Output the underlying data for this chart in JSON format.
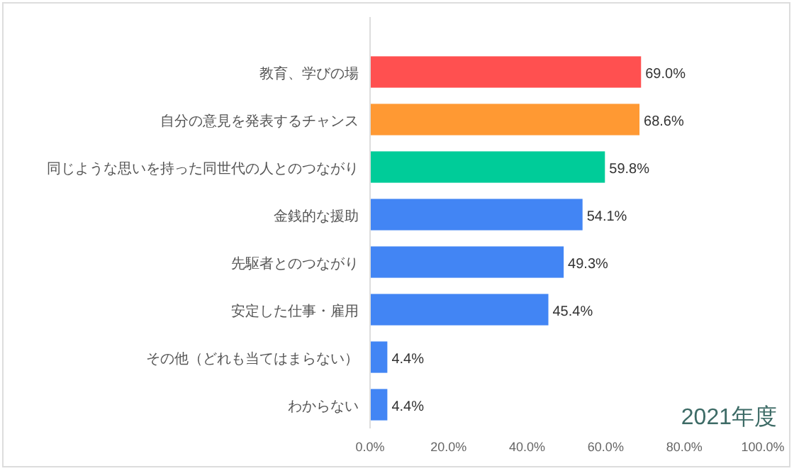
{
  "chart_data": {
    "type": "bar",
    "orientation": "horizontal",
    "categories": [
      "教育、学びの場",
      "自分の意見を発表するチャンス",
      "同じような思いを持った同世代の人とのつながり",
      "金銭的な援助",
      "先駆者とのつながり",
      "安定した仕事・雇用",
      "その他（どれも当てはまらない）",
      "わからない"
    ],
    "values": [
      69.0,
      68.6,
      59.8,
      54.1,
      49.3,
      45.4,
      4.4,
      4.4
    ],
    "colors": [
      "#ff5050",
      "#ff9933",
      "#00cc99",
      "#4285f4",
      "#4285f4",
      "#4285f4",
      "#4285f4",
      "#4285f4"
    ],
    "value_labels": [
      "69.0%",
      "68.6%",
      "59.8%",
      "54.1%",
      "49.3%",
      "45.4%",
      "4.4%",
      "4.4%"
    ],
    "xlim": [
      0,
      100
    ],
    "xticks": [
      {
        "value": 0,
        "label": "0.0%"
      },
      {
        "value": 20,
        "label": "20.0%"
      },
      {
        "value": 40,
        "label": "40.0%"
      },
      {
        "value": 60,
        "label": "60.0%"
      },
      {
        "value": 80,
        "label": "80.0%"
      },
      {
        "value": 100,
        "label": "100.0%"
      }
    ],
    "grid": false,
    "annotations": [
      "2021年度"
    ]
  }
}
